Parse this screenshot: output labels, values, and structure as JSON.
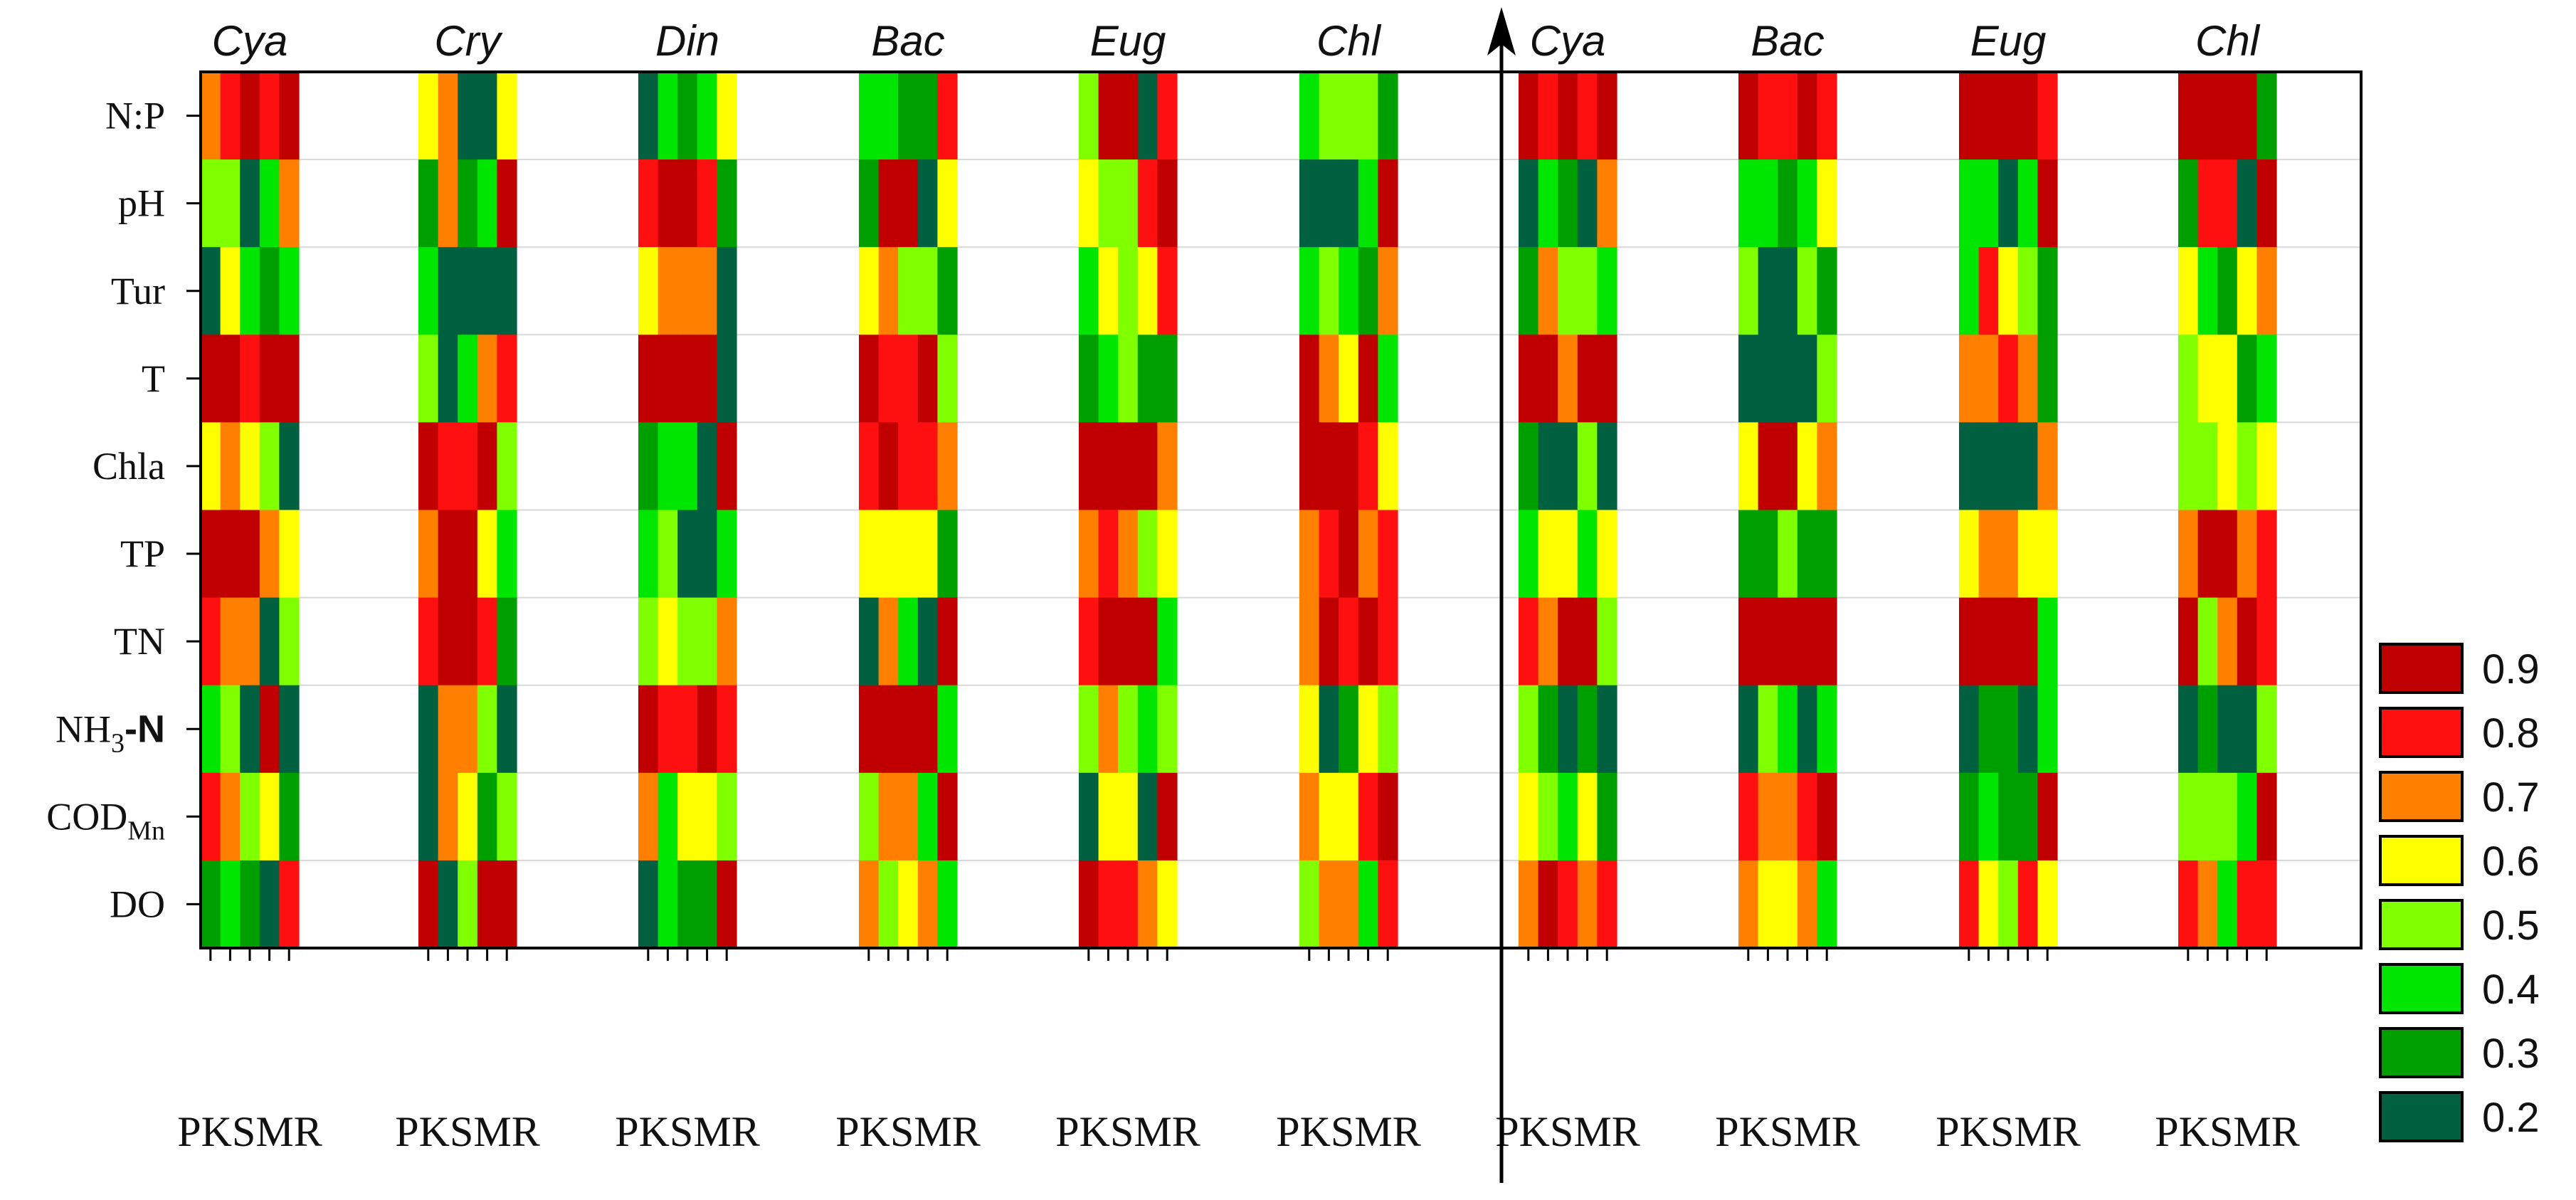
{
  "chart_data": {
    "type": "heatmap",
    "title": "",
    "columns_per_group": [
      "P",
      "K",
      "S",
      "M",
      "R"
    ],
    "rows": [
      "N:P",
      "pH",
      "Tur",
      "T",
      "Chla",
      "TP",
      "TN",
      "NH3-N",
      "CODMn",
      "DO"
    ],
    "row_label_parts": [
      {
        "main": "N:P"
      },
      {
        "main": "pH"
      },
      {
        "main": "Tur"
      },
      {
        "main": "T"
      },
      {
        "main": "Chla"
      },
      {
        "main": "TP"
      },
      {
        "main": "TN"
      },
      {
        "main": "NH",
        "sub": "3",
        "tail": "-N"
      },
      {
        "main": "COD",
        "sub": "Mn"
      },
      {
        "main": "DO"
      }
    ],
    "panels": [
      {
        "name": "left",
        "groups": [
          {
            "label": "Cya",
            "values": [
              [
                0.7,
                0.8,
                0.9,
                0.8,
                0.9
              ],
              [
                0.5,
                0.5,
                0.2,
                0.4,
                0.7
              ],
              [
                0.2,
                0.6,
                0.4,
                0.3,
                0.4
              ],
              [
                0.9,
                0.9,
                0.8,
                0.9,
                0.9
              ],
              [
                0.6,
                0.7,
                0.6,
                0.5,
                0.2
              ],
              [
                0.9,
                0.9,
                0.9,
                0.7,
                0.6
              ],
              [
                0.8,
                0.7,
                0.7,
                0.2,
                0.5
              ],
              [
                0.4,
                0.5,
                0.2,
                0.9,
                0.2
              ],
              [
                0.8,
                0.7,
                0.5,
                0.6,
                0.3
              ],
              [
                0.3,
                0.4,
                0.3,
                0.2,
                0.8
              ]
            ]
          },
          {
            "label": "Cry",
            "values": [
              [
                0.6,
                0.7,
                0.2,
                0.2,
                0.6
              ],
              [
                0.3,
                0.7,
                0.3,
                0.4,
                0.9
              ],
              [
                0.4,
                0.2,
                0.2,
                0.2,
                0.2
              ],
              [
                0.5,
                0.2,
                0.4,
                0.7,
                0.8
              ],
              [
                0.9,
                0.8,
                0.8,
                0.9,
                0.5
              ],
              [
                0.7,
                0.9,
                0.9,
                0.6,
                0.4
              ],
              [
                0.8,
                0.9,
                0.9,
                0.8,
                0.3
              ],
              [
                0.2,
                0.7,
                0.7,
                0.5,
                0.2
              ],
              [
                0.2,
                0.7,
                0.6,
                0.3,
                0.5
              ],
              [
                0.9,
                0.2,
                0.5,
                0.9,
                0.9
              ]
            ]
          },
          {
            "label": "Din",
            "values": [
              [
                0.2,
                0.4,
                0.3,
                0.4,
                0.6
              ],
              [
                0.8,
                0.9,
                0.9,
                0.8,
                0.3
              ],
              [
                0.6,
                0.7,
                0.7,
                0.7,
                0.2
              ],
              [
                0.9,
                0.9,
                0.9,
                0.9,
                0.2
              ],
              [
                0.3,
                0.4,
                0.4,
                0.2,
                0.9
              ],
              [
                0.4,
                0.5,
                0.2,
                0.2,
                0.4
              ],
              [
                0.5,
                0.6,
                0.5,
                0.5,
                0.7
              ],
              [
                0.9,
                0.8,
                0.8,
                0.9,
                0.8
              ],
              [
                0.7,
                0.4,
                0.6,
                0.6,
                0.5
              ],
              [
                0.2,
                0.4,
                0.3,
                0.3,
                0.9
              ]
            ]
          },
          {
            "label": "Bac",
            "values": [
              [
                0.4,
                0.4,
                0.3,
                0.3,
                0.8
              ],
              [
                0.3,
                0.9,
                0.9,
                0.2,
                0.6
              ],
              [
                0.6,
                0.7,
                0.5,
                0.5,
                0.3
              ],
              [
                0.9,
                0.8,
                0.8,
                0.9,
                0.5
              ],
              [
                0.8,
                0.9,
                0.8,
                0.8,
                0.7
              ],
              [
                0.6,
                0.6,
                0.6,
                0.6,
                0.3
              ],
              [
                0.2,
                0.7,
                0.4,
                0.2,
                0.9
              ],
              [
                0.9,
                0.9,
                0.9,
                0.9,
                0.4
              ],
              [
                0.5,
                0.7,
                0.7,
                0.4,
                0.9
              ],
              [
                0.7,
                0.5,
                0.6,
                0.7,
                0.4
              ]
            ]
          },
          {
            "label": "Eug",
            "values": [
              [
                0.5,
                0.9,
                0.9,
                0.2,
                0.8
              ],
              [
                0.6,
                0.5,
                0.5,
                0.8,
                0.9
              ],
              [
                0.4,
                0.6,
                0.5,
                0.6,
                0.8
              ],
              [
                0.3,
                0.4,
                0.5,
                0.3,
                0.3
              ],
              [
                0.9,
                0.9,
                0.9,
                0.9,
                0.7
              ],
              [
                0.7,
                0.8,
                0.7,
                0.5,
                0.6
              ],
              [
                0.8,
                0.9,
                0.9,
                0.9,
                0.4
              ],
              [
                0.5,
                0.7,
                0.5,
                0.4,
                0.5
              ],
              [
                0.2,
                0.6,
                0.6,
                0.2,
                0.9
              ],
              [
                0.9,
                0.8,
                0.8,
                0.7,
                0.6
              ]
            ]
          },
          {
            "label": "Chl",
            "values": [
              [
                0.4,
                0.5,
                0.5,
                0.5,
                0.3
              ],
              [
                0.2,
                0.2,
                0.2,
                0.4,
                0.9
              ],
              [
                0.4,
                0.5,
                0.4,
                0.3,
                0.7
              ],
              [
                0.9,
                0.7,
                0.6,
                0.9,
                0.4
              ],
              [
                0.9,
                0.9,
                0.9,
                0.8,
                0.6
              ],
              [
                0.7,
                0.8,
                0.9,
                0.7,
                0.8
              ],
              [
                0.7,
                0.9,
                0.8,
                0.9,
                0.8
              ],
              [
                0.6,
                0.2,
                0.3,
                0.6,
                0.5
              ],
              [
                0.7,
                0.6,
                0.6,
                0.8,
                0.9
              ],
              [
                0.5,
                0.7,
                0.7,
                0.4,
                0.8
              ]
            ]
          }
        ]
      },
      {
        "name": "right",
        "groups": [
          {
            "label": "Cya",
            "values": [
              [
                0.9,
                0.8,
                0.9,
                0.8,
                0.9
              ],
              [
                0.2,
                0.4,
                0.3,
                0.2,
                0.7
              ],
              [
                0.3,
                0.7,
                0.5,
                0.5,
                0.4
              ],
              [
                0.9,
                0.9,
                0.7,
                0.9,
                0.9
              ],
              [
                0.3,
                0.2,
                0.2,
                0.5,
                0.2
              ],
              [
                0.4,
                0.6,
                0.6,
                0.4,
                0.6
              ],
              [
                0.8,
                0.7,
                0.9,
                0.9,
                0.5
              ],
              [
                0.5,
                0.3,
                0.2,
                0.3,
                0.2
              ],
              [
                0.6,
                0.5,
                0.4,
                0.6,
                0.3
              ],
              [
                0.7,
                0.9,
                0.8,
                0.7,
                0.8
              ]
            ]
          },
          {
            "label": "Bac",
            "values": [
              [
                0.9,
                0.8,
                0.8,
                0.9,
                0.8
              ],
              [
                0.4,
                0.4,
                0.3,
                0.4,
                0.6
              ],
              [
                0.5,
                0.2,
                0.2,
                0.5,
                0.3
              ],
              [
                0.2,
                0.2,
                0.2,
                0.2,
                0.5
              ],
              [
                0.6,
                0.9,
                0.9,
                0.6,
                0.7
              ],
              [
                0.3,
                0.3,
                0.5,
                0.3,
                0.3
              ],
              [
                0.9,
                0.9,
                0.9,
                0.9,
                0.9
              ],
              [
                0.2,
                0.5,
                0.4,
                0.2,
                0.4
              ],
              [
                0.8,
                0.7,
                0.7,
                0.8,
                0.9
              ],
              [
                0.7,
                0.6,
                0.6,
                0.7,
                0.4
              ]
            ]
          },
          {
            "label": "Eug",
            "values": [
              [
                0.9,
                0.9,
                0.9,
                0.9,
                0.8
              ],
              [
                0.4,
                0.4,
                0.2,
                0.4,
                0.9
              ],
              [
                0.4,
                0.8,
                0.6,
                0.5,
                0.3
              ],
              [
                0.7,
                0.7,
                0.8,
                0.7,
                0.3
              ],
              [
                0.2,
                0.2,
                0.2,
                0.2,
                0.7
              ],
              [
                0.6,
                0.7,
                0.7,
                0.6,
                0.6
              ],
              [
                0.9,
                0.9,
                0.9,
                0.9,
                0.4
              ],
              [
                0.2,
                0.3,
                0.3,
                0.2,
                0.4
              ],
              [
                0.3,
                0.4,
                0.3,
                0.3,
                0.9
              ],
              [
                0.8,
                0.6,
                0.5,
                0.8,
                0.6
              ]
            ]
          },
          {
            "label": "Chl",
            "values": [
              [
                0.9,
                0.9,
                0.9,
                0.9,
                0.3
              ],
              [
                0.3,
                0.8,
                0.8,
                0.2,
                0.9
              ],
              [
                0.6,
                0.4,
                0.3,
                0.6,
                0.7
              ],
              [
                0.5,
                0.6,
                0.6,
                0.3,
                0.4
              ],
              [
                0.5,
                0.5,
                0.6,
                0.5,
                0.6
              ],
              [
                0.7,
                0.9,
                0.9,
                0.7,
                0.8
              ],
              [
                0.9,
                0.5,
                0.7,
                0.9,
                0.8
              ],
              [
                0.2,
                0.3,
                0.2,
                0.2,
                0.5
              ],
              [
                0.5,
                0.5,
                0.5,
                0.4,
                0.9
              ],
              [
                0.8,
                0.7,
                0.4,
                0.8,
                0.8
              ]
            ]
          }
        ]
      }
    ],
    "legend": {
      "levels": [
        "0.9",
        "0.8",
        "0.7",
        "0.6",
        "0.5",
        "0.4",
        "0.3",
        "0.2"
      ],
      "colors": [
        "#C00000",
        "#FF1010",
        "#FF7F00",
        "#FFFF00",
        "#80FF00",
        "#00E600",
        "#009F00",
        "#006040"
      ],
      "placement": "right"
    },
    "value_colors": {
      "0.9": "#C00000",
      "0.8": "#FF1010",
      "0.7": "#FF7F00",
      "0.6": "#FFFF00",
      "0.5": "#80FF00",
      "0.4": "#00E600",
      "0.3": "#009F00",
      "0.2": "#006040"
    },
    "divider": "vertical arrow between panels"
  }
}
